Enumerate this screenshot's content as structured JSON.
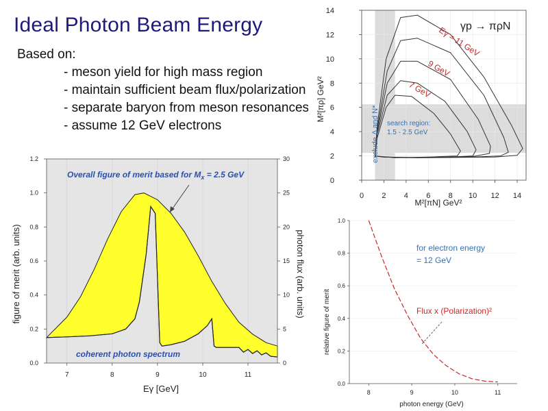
{
  "slide": {
    "title": "Ideal Photon Beam Energy",
    "based_on": "Based on:",
    "bullets": [
      "- meson yield for high mass region",
      "- maintain sufficient beam flux/polarization",
      "- separate baryon from meson resonances",
      "- assume 12 GeV electrons"
    ]
  },
  "chart_data": [
    {
      "id": "dalitz",
      "type": "line",
      "title": "γp → πρN",
      "xlabel": "M²[πN]  GeV²",
      "ylabel": "M²[πρ]  GeV²",
      "x_ticks": [
        "0",
        "2",
        "4",
        "6",
        "8",
        "10",
        "12",
        "14"
      ],
      "y_ticks": [
        "0",
        "2",
        "4",
        "6",
        "8",
        "10",
        "12",
        "14"
      ],
      "xlim": [
        0,
        14.8
      ],
      "ylim": [
        0,
        14
      ],
      "excluded_band_label": "exclude Δ and N*",
      "excluded_band_x": [
        1.2,
        3.0
      ],
      "search_region_label_1": "search region:",
      "search_region_label_2": "1.5 - 2.5 GeV",
      "search_region_y": [
        2.25,
        6.25
      ],
      "series": [
        {
          "name": "Eγ = 11 GeV",
          "values": [
            [
              1.2,
              2.0
            ],
            [
              1.4,
              4.5
            ],
            [
              2.2,
              10.0
            ],
            [
              3.5,
              13.4
            ],
            [
              5.0,
              13.6
            ],
            [
              8.0,
              12.0
            ],
            [
              11.0,
              8.5
            ],
            [
              13.5,
              4.5
            ],
            [
              14.5,
              2.6
            ],
            [
              14.0,
              2.05
            ],
            [
              12.0,
              1.9
            ],
            [
              6.0,
              1.85
            ],
            [
              2.0,
              1.9
            ],
            [
              1.2,
              2.0
            ]
          ]
        },
        {
          "name": "",
          "values": [
            [
              1.2,
              2.0
            ],
            [
              1.4,
              4.2
            ],
            [
              2.3,
              9.0
            ],
            [
              3.5,
              11.5
            ],
            [
              5.0,
              11.7
            ],
            [
              8.0,
              10.5
            ],
            [
              11.0,
              7.0
            ],
            [
              12.8,
              3.5
            ],
            [
              13.2,
              2.3
            ],
            [
              12.5,
              2.0
            ],
            [
              10.0,
              1.9
            ],
            [
              5.0,
              1.85
            ],
            [
              2.0,
              1.9
            ],
            [
              1.2,
              2.0
            ]
          ]
        },
        {
          "name": "9 GeV",
          "values": [
            [
              1.2,
              2.0
            ],
            [
              1.4,
              4.0
            ],
            [
              2.3,
              8.0
            ],
            [
              3.5,
              9.8
            ],
            [
              5.0,
              9.8
            ],
            [
              8.0,
              8.3
            ],
            [
              10.5,
              5.0
            ],
            [
              11.6,
              2.8
            ],
            [
              11.5,
              2.2
            ],
            [
              10.0,
              1.95
            ],
            [
              5.0,
              1.85
            ],
            [
              2.0,
              1.9
            ],
            [
              1.2,
              2.0
            ]
          ]
        },
        {
          "name": "",
          "values": [
            [
              1.2,
              2.0
            ],
            [
              1.4,
              3.8
            ],
            [
              2.3,
              7.0
            ],
            [
              3.5,
              8.2
            ],
            [
              5.0,
              8.0
            ],
            [
              7.5,
              6.5
            ],
            [
              9.5,
              4.0
            ],
            [
              10.3,
              2.5
            ],
            [
              10.0,
              2.0
            ],
            [
              8.0,
              1.9
            ],
            [
              4.0,
              1.85
            ],
            [
              2.0,
              1.9
            ],
            [
              1.2,
              2.0
            ]
          ]
        },
        {
          "name": "7 GeV",
          "values": [
            [
              1.2,
              2.0
            ],
            [
              1.4,
              3.5
            ],
            [
              2.2,
              6.0
            ],
            [
              3.0,
              7.0
            ],
            [
              4.5,
              6.9
            ],
            [
              6.5,
              5.5
            ],
            [
              8.0,
              3.8
            ],
            [
              8.9,
              2.4
            ],
            [
              8.6,
              2.0
            ],
            [
              6.0,
              1.9
            ],
            [
              3.0,
              1.85
            ],
            [
              1.2,
              2.0
            ]
          ]
        }
      ]
    },
    {
      "id": "figure_of_merit",
      "type": "area",
      "annotation": "Overall figure of merit based for Mx = 2.5 GeV",
      "annotation_main": "Overall figure of merit based for M",
      "annotation_sub": "x",
      "annotation_tail": " = 2.5 GeV",
      "bottom_label": "coherent photon spectrum",
      "xlabel": "Eγ  [GeV]",
      "ylabel_left": "figure of merit (arb. units)",
      "ylabel_right": "photon flux (arb. units)",
      "x_ticks": [
        "7",
        "8",
        "9",
        "10",
        "11"
      ],
      "y_ticks_left": [
        "0.0",
        "0.2",
        "0.4",
        "0.6",
        "0.8",
        "1.0",
        "1.2"
      ],
      "y_ticks_right": [
        "0",
        "5",
        "10",
        "15",
        "20",
        "25",
        "30"
      ],
      "xlim": [
        6.55,
        11.65
      ],
      "ylim_left": [
        0,
        1.2
      ],
      "ylim_right": [
        0,
        30
      ],
      "series": [
        {
          "name": "figure of merit",
          "x": [
            6.55,
            7.0,
            7.3,
            7.6,
            7.9,
            8.2,
            8.5,
            8.7,
            9.0,
            9.3,
            9.6,
            9.9,
            10.2,
            10.5,
            10.8,
            11.1,
            11.4,
            11.65
          ],
          "values": [
            0.15,
            0.27,
            0.39,
            0.55,
            0.73,
            0.89,
            0.99,
            1.0,
            0.96,
            0.88,
            0.77,
            0.63,
            0.48,
            0.35,
            0.24,
            0.17,
            0.12,
            0.1
          ]
        },
        {
          "name": "photon flux",
          "x": [
            6.55,
            7.0,
            7.5,
            8.0,
            8.3,
            8.5,
            8.6,
            8.75,
            8.85,
            8.95,
            9.05,
            9.1,
            9.3,
            9.6,
            9.9,
            10.1,
            10.2,
            10.25,
            10.3,
            10.5,
            10.8,
            10.9,
            11.0,
            11.1,
            11.2,
            11.3,
            11.4,
            11.5,
            11.65
          ],
          "values": [
            3.75,
            3.85,
            4.0,
            4.3,
            5.0,
            6.5,
            9.0,
            16.0,
            23.0,
            22.0,
            3.0,
            2.5,
            2.7,
            3.2,
            4.3,
            5.5,
            6.5,
            2.5,
            2.3,
            2.3,
            2.3,
            1.6,
            2.0,
            1.4,
            1.8,
            1.2,
            1.5,
            1.0,
            0.9
          ]
        }
      ]
    },
    {
      "id": "relative_figure_of_merit",
      "type": "line",
      "label_line1": "for electron energy",
      "label_line2": "= 12 GeV",
      "series_label": "Flux  x (Polarization)²",
      "xlabel": "photon energy (GeV)",
      "ylabel": "relative figure of merit",
      "x_ticks": [
        "8",
        "9",
        "10",
        "11"
      ],
      "y_ticks": [
        "0.0",
        "0.2",
        "0.4",
        "0.6",
        "0.8",
        "1.0"
      ],
      "xlim": [
        7.55,
        11.45
      ],
      "ylim": [
        0,
        1.0
      ],
      "series": [
        {
          "name": "Flux x (Polarization)²",
          "x": [
            8.0,
            8.3,
            8.6,
            8.9,
            9.2,
            9.5,
            9.8,
            10.1,
            10.4,
            10.7,
            11.0
          ],
          "values": [
            1.0,
            0.78,
            0.58,
            0.42,
            0.28,
            0.18,
            0.11,
            0.06,
            0.03,
            0.015,
            0.01
          ]
        }
      ]
    }
  ]
}
